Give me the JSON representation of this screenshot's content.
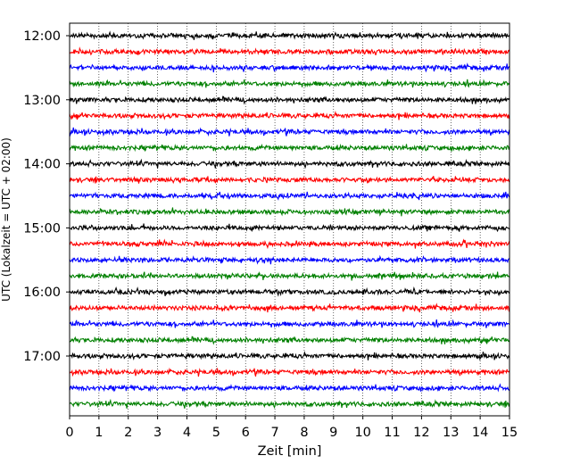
{
  "chart_data": {
    "type": "line",
    "title": "",
    "xlabel": "Zeit  [min]",
    "ylabel": "UTC (Lokalzeit = UTC + 02:00)",
    "xlim": [
      0,
      15
    ],
    "x_ticks": [
      "0",
      "1",
      "2",
      "3",
      "4",
      "5",
      "6",
      "7",
      "8",
      "9",
      "10",
      "11",
      "12",
      "13",
      "14",
      "15"
    ],
    "y_tick_labels": [
      "12:00",
      "13:00",
      "14:00",
      "15:00",
      "16:00",
      "17:00"
    ],
    "vertical_grid": "dotted, every 1 min",
    "trace_interval_min": 15,
    "trace_colors_cycle": [
      "#000000",
      "#ff0000",
      "#0000ff",
      "#008000"
    ],
    "traces": [
      "12:00",
      "12:15",
      "12:30",
      "12:45",
      "13:00",
      "13:15",
      "13:30",
      "13:45",
      "14:00",
      "14:15",
      "14:30",
      "14:45",
      "15:00",
      "15:15",
      "15:30",
      "15:45",
      "16:00",
      "16:15",
      "16:30",
      "16:45",
      "17:00",
      "17:15",
      "17:30",
      "17:45"
    ]
  }
}
